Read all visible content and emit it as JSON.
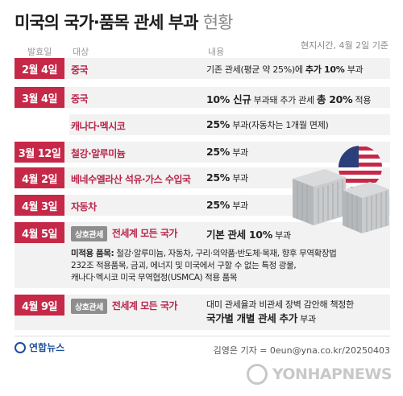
{
  "title": {
    "main": "미국의 국가·품목 관세 부과",
    "sub": "현황"
  },
  "date_note": "현지시간, 4월 2일 기준",
  "columns": {
    "date": "발효일",
    "target": "대상",
    "content": "내용"
  },
  "rows": [
    {
      "date": "2월 4일",
      "target": "중국",
      "content_parts": [
        {
          "t": "기존 관세(평균 약 25%)에 "
        },
        {
          "t": "추가 10%",
          "b": true
        },
        {
          "t": " 부과"
        }
      ]
    },
    {
      "date": "3월 4일",
      "target": "중국",
      "content_parts": [
        {
          "t": "10% 신규",
          "b": true
        },
        {
          "t": " 부과돼 추가 관세 "
        },
        {
          "t": "총 20%",
          "b": true
        },
        {
          "t": " 적용"
        }
      ]
    },
    {
      "date": "",
      "target": "캐나다·멕시코",
      "content_parts": [
        {
          "t": "25%",
          "b": true
        },
        {
          "t": " 부과(자동차는 1개월 면제)"
        }
      ]
    },
    {
      "date": "3월 12일",
      "target": "철강·알루미늄",
      "content_parts": [
        {
          "t": "25%",
          "b": true
        },
        {
          "t": " 부과"
        }
      ]
    },
    {
      "date": "4월 2일",
      "target": "베네수엘라산 석유·가스 수입국",
      "content_parts": [
        {
          "t": "25%",
          "b": true
        },
        {
          "t": " 부과"
        }
      ]
    },
    {
      "date": "4월 3일",
      "target": "자동차",
      "content_parts": [
        {
          "t": "25%",
          "b": true
        },
        {
          "t": " 부과"
        }
      ]
    }
  ],
  "row_apr5": {
    "date": "4월 5일",
    "tag": "상호관세",
    "target": "전세계 모든 국가",
    "content_bold": "기본 관세 10%",
    "content_rest": " 부과",
    "note_label": "미적용 품목:",
    "note_lines": [
      " 철강·알루미늄, 자동차, 구리·의약품·반도체·목재, 향후 무역확장법",
      "232조 적용품목, 금괴, 에너지 및 미국에서 구할 수 없는 특정 광물,",
      "캐나다·멕시코 미국 무역협정(USMCA) 적용 품목"
    ]
  },
  "row_apr9": {
    "date": "4월 9일",
    "tag": "상호관세",
    "target": "전세계 모든 국가",
    "line1": "대미 관세율과 비관세 장벽 감안해 책정한",
    "line2_bold": "국가별 개별 관세 추가",
    "line2_rest": " 부과"
  },
  "footer": {
    "logo_text": "연합뉴스",
    "credit": "김영은 기자 = 0eun@yna.co.kr/20250403",
    "watermark": "YONHAPNEWS"
  },
  "colors": {
    "accent": "#c62848",
    "target_text": "#b8264b",
    "tag_bg": "#8e8e8e",
    "row_bg": "#f2f2f2"
  }
}
